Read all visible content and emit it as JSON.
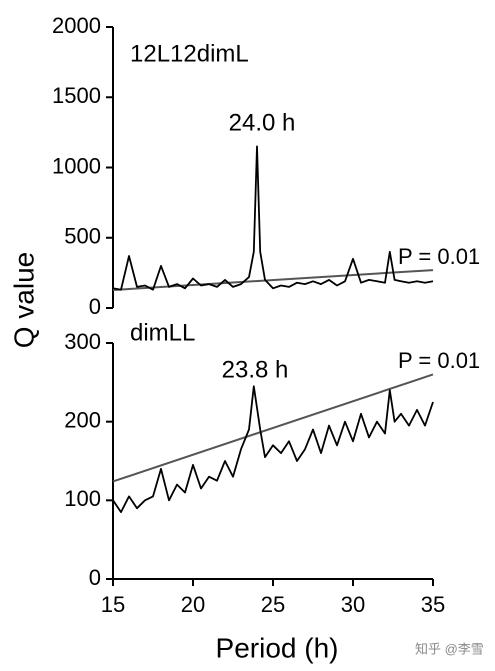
{
  "chart_data": [
    {
      "type": "line",
      "panel_label": "12L12dimL",
      "peak_label": "24.0 h",
      "ylabel": "Q value",
      "xlim": [
        15,
        35
      ],
      "ylim": [
        0,
        2000
      ],
      "yticks": [
        0,
        500,
        1000,
        1500,
        2000
      ],
      "x": [
        15,
        15.5,
        16,
        16.5,
        17,
        17.5,
        18,
        18.5,
        19,
        19.5,
        20,
        20.5,
        21,
        21.5,
        22,
        22.5,
        23,
        23.5,
        23.8,
        24.0,
        24.2,
        24.5,
        25,
        25.5,
        26,
        26.5,
        27,
        27.5,
        28,
        28.5,
        29,
        29.5,
        30,
        30.5,
        31,
        31.5,
        32,
        32.3,
        32.6,
        33,
        33.5,
        34,
        34.5,
        35
      ],
      "series": [
        {
          "color": "#000000",
          "values": [
            140,
            130,
            370,
            150,
            160,
            130,
            300,
            150,
            170,
            140,
            210,
            160,
            170,
            150,
            200,
            150,
            170,
            220,
            400,
            1150,
            400,
            200,
            140,
            160,
            150,
            180,
            170,
            190,
            170,
            200,
            160,
            190,
            350,
            180,
            200,
            190,
            180,
            400,
            200,
            190,
            180,
            190,
            180,
            190
          ]
        }
      ],
      "threshold": {
        "label": "P = 0.01",
        "color": "#555555",
        "x": [
          15,
          35
        ],
        "values": [
          128,
          270
        ]
      }
    },
    {
      "type": "line",
      "panel_label": "dimLL",
      "peak_label": "23.8 h",
      "xlabel": "Period (h)",
      "xlim": [
        15,
        35
      ],
      "xticks": [
        15,
        20,
        25,
        30,
        35
      ],
      "ylim": [
        0,
        300
      ],
      "yticks": [
        0,
        100,
        200,
        300
      ],
      "x": [
        15,
        15.5,
        16,
        16.5,
        17,
        17.5,
        18,
        18.5,
        19,
        19.5,
        20,
        20.5,
        21,
        21.5,
        22,
        22.5,
        23,
        23.5,
        23.8,
        24.2,
        24.5,
        25,
        25.5,
        26,
        26.5,
        27,
        27.5,
        28,
        28.5,
        29,
        29.5,
        30,
        30.5,
        31,
        31.5,
        32,
        32.3,
        32.6,
        33,
        33.5,
        34,
        34.5,
        35
      ],
      "series": [
        {
          "color": "#000000",
          "values": [
            100,
            85,
            105,
            90,
            100,
            105,
            140,
            100,
            120,
            110,
            145,
            115,
            130,
            125,
            150,
            130,
            165,
            190,
            245,
            190,
            155,
            170,
            160,
            175,
            150,
            165,
            190,
            160,
            195,
            170,
            200,
            175,
            210,
            180,
            200,
            185,
            240,
            200,
            210,
            195,
            215,
            195,
            225
          ]
        }
      ],
      "threshold": {
        "label": "P = 0.01",
        "color": "#555555",
        "x": [
          15,
          35
        ],
        "values": [
          124,
          260
        ]
      }
    }
  ],
  "watermark": "知乎 @李雪"
}
